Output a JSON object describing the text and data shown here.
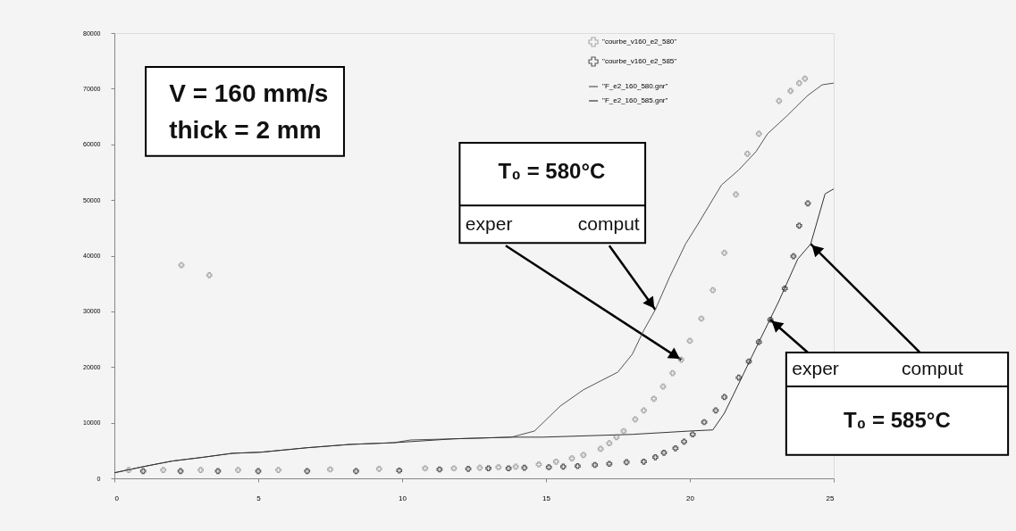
{
  "chart_data": {
    "type": "scatter",
    "series": [
      {
        "name": "\"courbe_v160_e2_580\"",
        "marker": "cross",
        "color": "#8a8a8a",
        "x": [
          0.5,
          1.7,
          2.33,
          3.0,
          3.3,
          4.3,
          5.7,
          7.5,
          9.2,
          10.8,
          11.8,
          12.7,
          13.35,
          13.95,
          14.75,
          15.35,
          15.9,
          16.3,
          16.9,
          17.2,
          17.45,
          17.7,
          18.1,
          18.4,
          18.75,
          19.07,
          19.4,
          19.7,
          20.0,
          20.4,
          20.8,
          21.2,
          21.6,
          22.0,
          22.4,
          23.1,
          23.5,
          23.8,
          24.0
        ],
        "values": [
          1500,
          1500,
          38300,
          1500,
          36500,
          1500,
          1500,
          1600,
          1700,
          1800,
          1800,
          1900,
          2000,
          2100,
          2500,
          3000,
          3600,
          4200,
          5300,
          6300,
          7400,
          8500,
          10600,
          12200,
          14300,
          16500,
          18900,
          21300,
          24700,
          28700,
          33800,
          40500,
          51000,
          58300,
          61900,
          67800,
          69600,
          71000,
          71800
        ]
      },
      {
        "name": "\"courbe_v160_e2_585\"",
        "marker": "cross",
        "color": "#1a1a1a",
        "x": [
          1.0,
          2.3,
          3.6,
          5.0,
          6.7,
          8.4,
          9.9,
          11.3,
          12.3,
          13.0,
          13.7,
          14.25,
          15.1,
          15.6,
          16.1,
          16.7,
          17.2,
          17.8,
          18.4,
          18.8,
          19.1,
          19.5,
          19.8,
          20.1,
          20.5,
          20.9,
          21.2,
          21.7,
          22.05,
          22.4,
          22.8,
          23.3,
          23.6,
          23.8,
          24.1
        ],
        "values": [
          1300,
          1300,
          1300,
          1300,
          1300,
          1300,
          1400,
          1600,
          1700,
          1800,
          1800,
          1900,
          2000,
          2100,
          2200,
          2400,
          2600,
          2900,
          3000,
          3800,
          4600,
          5400,
          6600,
          7900,
          10100,
          12200,
          14600,
          18100,
          21000,
          24500,
          28500,
          34100,
          39900,
          45400,
          49400
        ]
      },
      {
        "name": "\"F_e2_160_580.gnr\"",
        "type": "line",
        "color": "#555555",
        "x": [
          0,
          1,
          2,
          3.1,
          4.1,
          5.1,
          6.7,
          8.2,
          9.7,
          10.3,
          11.8,
          13.8,
          14.6,
          15.1,
          15.5,
          16.3,
          16.9,
          17.5,
          18.0,
          18.4,
          18.8,
          19.3,
          19.6,
          19.85,
          20.25,
          21.1,
          21.7,
          22.3,
          22.7,
          23.35,
          24.1,
          24.6,
          25
        ],
        "values": [
          1000,
          2100,
          3100,
          3800,
          4500,
          4700,
          5500,
          6100,
          6400,
          6900,
          7100,
          7400,
          8500,
          11000,
          13000,
          15900,
          17500,
          19100,
          22300,
          26600,
          30300,
          36200,
          39400,
          42100,
          45400,
          52700,
          55400,
          58700,
          61900,
          65000,
          68800,
          70700,
          71000
        ]
      },
      {
        "name": "\"F_e2_160_585.gnr\"",
        "type": "line",
        "color": "#333333",
        "x": [
          0,
          1,
          2,
          3.1,
          4.1,
          5.1,
          6.7,
          8.2,
          9.7,
          11.8,
          13.8,
          14.9,
          18.0,
          20.0,
          20.8,
          21.2,
          21.7,
          22.1,
          22.6,
          23.1,
          23.75,
          24.2,
          24.7,
          25
        ],
        "values": [
          1000,
          2100,
          3100,
          3800,
          4500,
          4700,
          5500,
          6100,
          6400,
          7100,
          7400,
          7400,
          7900,
          8500,
          8700,
          11700,
          17000,
          21300,
          26600,
          31900,
          39400,
          42100,
          51100,
          52000
        ]
      }
    ],
    "xlim": [
      0,
      25
    ],
    "xticks": [
      0,
      5,
      10,
      15,
      20,
      25
    ],
    "ylim": [
      0,
      80000
    ],
    "yticks": [
      0,
      10000,
      20000,
      30000,
      40000,
      50000,
      60000,
      70000,
      80000
    ],
    "grid": false,
    "legend": "top right",
    "annotations": [
      "V = 160 mm/s",
      "thick = 2 mm",
      "T₀ = 580°C",
      {
        "text": "exper",
        "x": 19.7,
        "y": 21300
      },
      {
        "text": "comput",
        "x": 18.8,
        "y": 30300
      },
      {
        "text": "exper",
        "x": 22.8,
        "y": 28500
      },
      {
        "text": "comput",
        "x": 24.2,
        "y": 42100
      },
      "T₀ = 585°C"
    ]
  }
}
